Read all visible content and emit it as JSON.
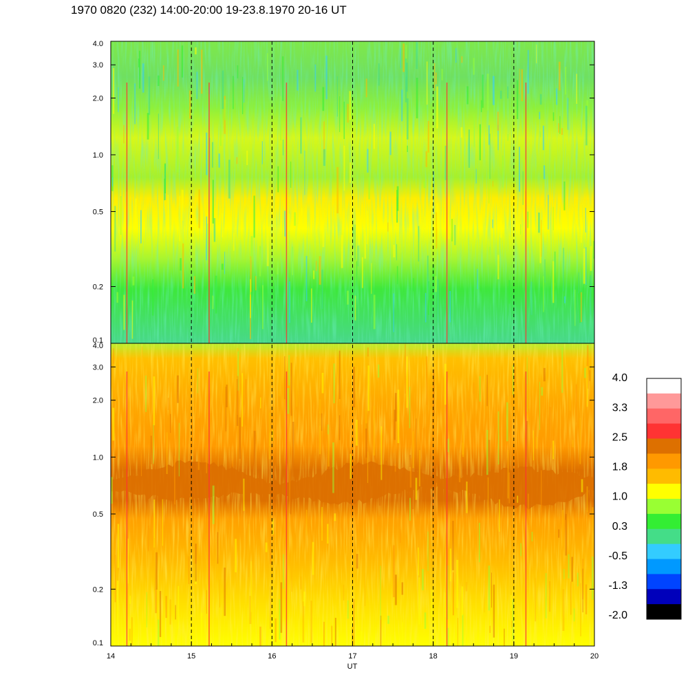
{
  "title": "1970 0820 (232) 14:00-20:00 19-23.8.1970  20-16 UT",
  "chart_data": {
    "type": "heatmap",
    "x_label": "UT",
    "x_ticks": [
      "14",
      "15",
      "16",
      "17",
      "18",
      "19",
      "20"
    ],
    "x_range": [
      14,
      20
    ],
    "y_scale": "log",
    "y_range": [
      0.1,
      4.0
    ],
    "y_ticks": [
      "0.1",
      "0.2",
      "0.5",
      "1.0",
      "2.0",
      "3.0",
      "4.0"
    ],
    "dashed_hour_markers": [
      15,
      16,
      17,
      18,
      19
    ],
    "panels": [
      {
        "name": "upper",
        "dominant_levels": "green/cyan at high frequency, yellow band near 0.3-0.6, green below 0.25",
        "band_center": 0.45
      },
      {
        "name": "lower",
        "dominant_levels": "orange upper region, dark-orange band near 0.7, yellow-orange below",
        "band_center": 0.72
      }
    ],
    "colorbar": {
      "labels": [
        "4.0",
        "3.3",
        "2.5",
        "1.8",
        "1.0",
        "0.3",
        "-0.5",
        "-1.3",
        "-2.0"
      ],
      "colors": [
        "#ffffff",
        "#ff9999",
        "#ff6666",
        "#ff3333",
        "#dd7000",
        "#ff9900",
        "#ffbb00",
        "#ffff00",
        "#99ff33",
        "#33ee33",
        "#44dd88",
        "#33ccff",
        "#0099ff",
        "#0044ff",
        "#0000bb",
        "#000000"
      ]
    }
  }
}
